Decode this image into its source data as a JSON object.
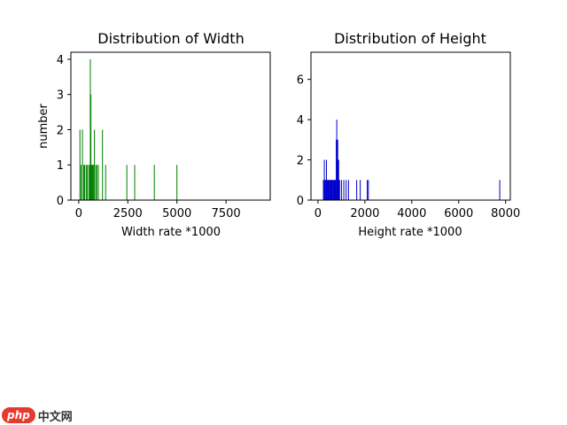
{
  "chart_data": [
    {
      "type": "bar",
      "title": "Distribution of Width",
      "xlabel": "Width rate *1000",
      "ylabel": "number",
      "xlim": [
        -400,
        9750
      ],
      "ylim": [
        0,
        4.2
      ],
      "xticks": [
        0,
        2500,
        5000,
        7500
      ],
      "xtick_labels": [
        "0",
        "2500",
        "5000",
        "7500"
      ],
      "yticks": [
        0,
        1,
        2,
        3,
        4
      ],
      "ytick_labels": [
        "0",
        "1",
        "2",
        "3",
        "4"
      ],
      "grid": false,
      "color": "#008000",
      "bar_width": 35,
      "x": [
        60,
        120,
        190,
        260,
        300,
        380,
        430,
        510,
        560,
        590,
        620,
        650,
        680,
        720,
        760,
        800,
        870,
        920,
        1000,
        1210,
        1370,
        2450,
        2850,
        3850,
        5000
      ],
      "values": [
        2,
        1,
        2,
        1,
        1,
        1,
        1,
        1,
        1,
        4,
        3,
        1,
        1,
        1,
        1,
        2,
        1,
        1,
        1,
        2,
        1,
        1,
        1,
        1,
        1
      ]
    },
    {
      "type": "bar",
      "title": "Distribution of Height",
      "xlabel": "Height rate *1000",
      "ylabel": "",
      "xlim": [
        -300,
        8200
      ],
      "ylim": [
        0,
        7.35
      ],
      "xticks": [
        0,
        2000,
        4000,
        6000,
        8000
      ],
      "xtick_labels": [
        "0",
        "2000",
        "4000",
        "6000",
        "8000"
      ],
      "yticks": [
        0,
        2,
        4,
        6
      ],
      "ytick_labels": [
        "0",
        "2",
        "4",
        "6"
      ],
      "grid": false,
      "color": "#0000cc",
      "bar_width": 30,
      "x": [
        230,
        270,
        300,
        330,
        360,
        390,
        420,
        450,
        480,
        510,
        540,
        570,
        600,
        630,
        660,
        690,
        720,
        750,
        780,
        800,
        820,
        840,
        860,
        880,
        900,
        920,
        1000,
        1100,
        1200,
        1300,
        1650,
        1800,
        2100,
        2150,
        7750
      ],
      "values": [
        1,
        2,
        1,
        1,
        2,
        1,
        1,
        1,
        1,
        1,
        1,
        1,
        1,
        1,
        1,
        1,
        1,
        1,
        3,
        4,
        3,
        3,
        2,
        2,
        1,
        1,
        1,
        1,
        1,
        1,
        1,
        1,
        1,
        1,
        1
      ]
    }
  ],
  "watermark": {
    "php_label": "php",
    "site_label": "中文网"
  }
}
